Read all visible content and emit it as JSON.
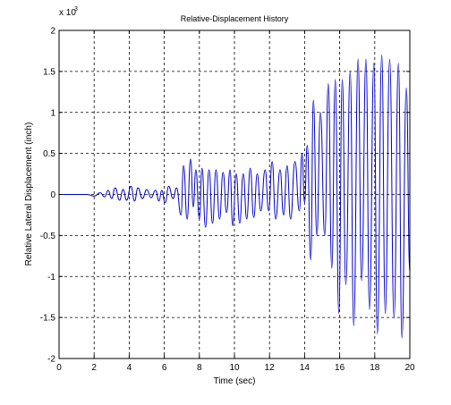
{
  "chart_data": {
    "type": "line",
    "title": "Relative-Displacement History",
    "xlabel": "Time (sec)",
    "ylabel": "Relative Lateral Displacement (inch)",
    "y_exponent_label": "x 10",
    "y_exponent_value": "3",
    "xlim": [
      0,
      20
    ],
    "ylim": [
      -2,
      2
    ],
    "x_ticks": [
      0,
      2,
      4,
      6,
      8,
      10,
      12,
      14,
      16,
      18,
      20
    ],
    "y_ticks": [
      -2,
      -1.5,
      -1,
      -0.5,
      0,
      0.5,
      1,
      1.5,
      2
    ],
    "x_tick_labels": [
      "0",
      "2",
      "4",
      "6",
      "8",
      "10",
      "12",
      "14",
      "16",
      "18",
      "20"
    ],
    "y_tick_labels": [
      "-2",
      "-1.5",
      "-1",
      "-0.5",
      "0",
      "0.5",
      "1",
      "1.5",
      "2"
    ],
    "grid": true,
    "line_color": "#0000c8",
    "series": [
      {
        "x": [
          0,
          1.6,
          2.0,
          2.35,
          2.6,
          2.8,
          3.0,
          3.2,
          3.45,
          3.65,
          3.85,
          4.1,
          4.3,
          4.5,
          4.75,
          5.0,
          5.25,
          5.5,
          5.7,
          5.85,
          6.05,
          6.25,
          6.5,
          6.7,
          6.95,
          7.1,
          7.3,
          7.5,
          7.65,
          7.8,
          8.0,
          8.15,
          8.35,
          8.55,
          8.75,
          8.95,
          9.15,
          9.35,
          9.55,
          9.75,
          9.9,
          10.1,
          10.3,
          10.5,
          10.7,
          10.9,
          11.1,
          11.3,
          11.5,
          11.75,
          11.95,
          12.15,
          12.35,
          12.6,
          12.8,
          13.0,
          13.2,
          13.45,
          13.7,
          13.85,
          14.0,
          14.15,
          14.35,
          14.5,
          14.7,
          14.9,
          15.15,
          15.35,
          15.55,
          15.75,
          15.95,
          16.15,
          16.35,
          16.6,
          16.8,
          17.05,
          17.25,
          17.5,
          17.7,
          17.95,
          18.15,
          18.4,
          18.6,
          18.85,
          19.1,
          19.35,
          19.55,
          19.8,
          20.0
        ],
        "y": [
          0,
          0,
          -0.02,
          0.02,
          -0.03,
          0.05,
          -0.05,
          0.08,
          -0.07,
          0.06,
          -0.07,
          0.1,
          -0.08,
          0.08,
          -0.05,
          0.06,
          -0.04,
          0.05,
          -0.08,
          0.05,
          -0.1,
          0.1,
          -0.05,
          0.08,
          -0.25,
          0.35,
          -0.3,
          0.43,
          -0.15,
          0.3,
          -0.3,
          0.32,
          -0.4,
          0.3,
          -0.35,
          0.3,
          -0.3,
          0.27,
          -0.22,
          0.3,
          -0.38,
          0.25,
          -0.35,
          0.25,
          -0.3,
          0.32,
          -0.28,
          0.25,
          -0.2,
          0.3,
          -0.2,
          0.4,
          -0.3,
          0.3,
          -0.25,
          0.35,
          -0.3,
          0.4,
          -0.2,
          0.5,
          -0.1,
          0.6,
          -0.8,
          1.15,
          -0.5,
          1.0,
          -0.5,
          1.35,
          -0.9,
          1.4,
          -1.45,
          1.4,
          -1.1,
          1.5,
          -1.6,
          1.65,
          -1.05,
          1.65,
          -1.4,
          1.6,
          -1.7,
          1.7,
          -1.45,
          1.65,
          -1.5,
          1.6,
          -1.75,
          1.3,
          -0.95
        ]
      }
    ]
  }
}
